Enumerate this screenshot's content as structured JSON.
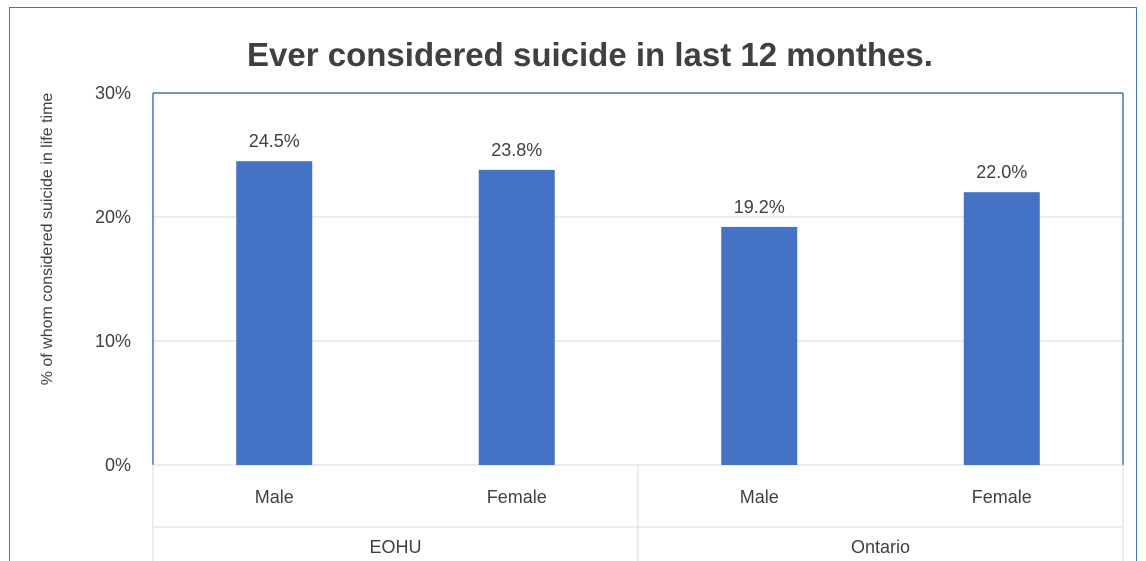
{
  "colors": {
    "bar": "#4472c4",
    "frame": "#4472c4",
    "grid": "#d9d9d9",
    "text": "#404040"
  },
  "chart_data": {
    "type": "bar",
    "title": "Ever considered suicide in last 12 monthes.",
    "ylabel": "% of whom considered suicide in life time",
    "xlabel": "",
    "ylim": [
      0,
      30
    ],
    "y_ticks": [
      "0%",
      "10%",
      "20%",
      "30%"
    ],
    "groups": [
      {
        "label": "EOHU",
        "categories": [
          "Male",
          "Female"
        ],
        "values": [
          24.5,
          23.8
        ],
        "data_labels": [
          "24.5%",
          "23.8%"
        ]
      },
      {
        "label": "Ontario",
        "categories": [
          "Male",
          "Female"
        ],
        "values": [
          19.2,
          22.0
        ],
        "data_labels": [
          "19.2%",
          "22.0%"
        ]
      }
    ],
    "grid": true,
    "legend": "none"
  }
}
